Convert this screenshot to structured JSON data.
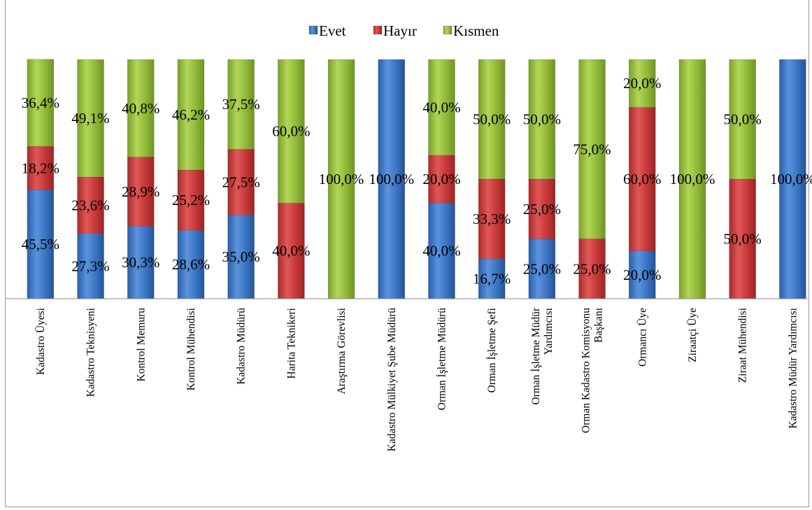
{
  "chart_data": {
    "type": "bar",
    "stacked": true,
    "percent_stacked": true,
    "legend_position": "top",
    "ylim": [
      0,
      100
    ],
    "grid": false,
    "categories": [
      "Kadastro Üyesi",
      "Kadastro Teknisyeni",
      "Kontrol Memuru",
      "Kontrol Mühendisi",
      "Kadastro Müdürü",
      "Harita Teknikeri",
      "Araştırma Görevlisi",
      "Kadastro Mülkiyet Şube Müdürü",
      "Orman İşletme Müdürü",
      "Orman İşletme Şefi",
      "Orman İşletme Müdür Yardımcısı",
      "Orman Kadastro Komisyonu Başkanı",
      "Ormancı Üye",
      "Ziraatçi Üye",
      "Ziraat Mühendisi",
      "Kadastro Müdür Yardımcısı"
    ],
    "category_lines": [
      [
        "Kadastro Üyesi"
      ],
      [
        "Kadastro Teknisyeni"
      ],
      [
        "Kontrol Memuru"
      ],
      [
        "Kontrol Mühendisi"
      ],
      [
        "Kadastro Müdürü"
      ],
      [
        "Harita Teknikeri"
      ],
      [
        "Araştırma Görevlisi"
      ],
      [
        "Kadastro Mülkiyet Şube Müdürü"
      ],
      [
        "Orman İşletme Müdürü"
      ],
      [
        "Orman İşletme Şefi"
      ],
      [
        "Orman İşletme Müdür",
        "Yardımcısı"
      ],
      [
        "Orman Kadastro Komisyonu",
        "Başkanı"
      ],
      [
        "Ormancı Üye"
      ],
      [
        "Ziraatçi Üye"
      ],
      [
        "Ziraat Mühendisi"
      ],
      [
        "Kadastro Müdür Yardımcısı"
      ]
    ],
    "series": [
      {
        "name": "Evet",
        "color": "#3a76c4",
        "values": [
          45.5,
          27.3,
          30.3,
          28.6,
          35.0,
          0,
          0,
          100.0,
          40.0,
          16.7,
          25.0,
          0,
          20.0,
          0,
          0,
          100.0
        ],
        "labels": [
          "45,5%",
          "27,3%",
          "30,3%",
          "28,6%",
          "35,0%",
          "",
          "",
          "100,0%",
          "40,0%",
          "16,7%",
          "25,0%",
          "",
          "20,0%",
          "",
          "",
          "100,0%"
        ]
      },
      {
        "name": "Hayır",
        "color": "#cc3b3b",
        "values": [
          18.2,
          23.6,
          28.9,
          25.2,
          27.5,
          40.0,
          0,
          0,
          20.0,
          33.3,
          25.0,
          25.0,
          60.0,
          0,
          50.0,
          0
        ],
        "labels": [
          "18,2%",
          "23,6%",
          "28,9%",
          "25,2%",
          "27,5%",
          "40,0%",
          "",
          "",
          "20,0%",
          "33,3%",
          "25,0%",
          "25,0%",
          "60,0%",
          "",
          "50,0%",
          ""
        ]
      },
      {
        "name": "Kısmen",
        "color": "#93bb3a",
        "values": [
          36.4,
          49.1,
          40.8,
          46.2,
          37.5,
          60.0,
          100.0,
          0,
          40.0,
          50.0,
          50.0,
          75.0,
          20.0,
          100.0,
          50.0,
          0
        ],
        "labels": [
          "36,4%",
          "49,1%",
          "40,8%",
          "46,2%",
          "37,5%",
          "60,0%",
          "100,0%",
          "",
          "40,0%",
          "50,0%",
          "50,0%",
          "75,0%",
          "20,0%",
          "100,0%",
          "50,0%",
          ""
        ]
      }
    ]
  }
}
